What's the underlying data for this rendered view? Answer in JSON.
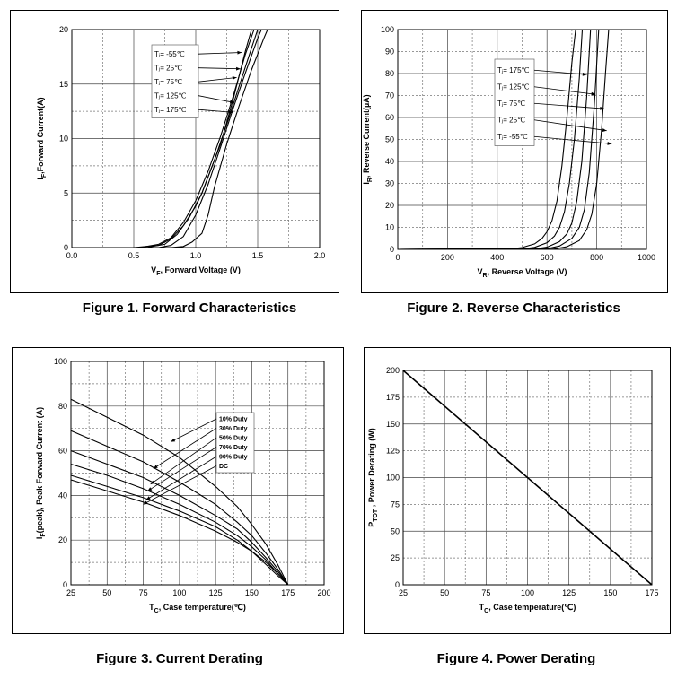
{
  "figures": [
    {
      "caption": "Figure 1. Forward Characteristics"
    },
    {
      "caption": "Figure 2. Reverse Characteristics"
    },
    {
      "caption": "Figure 3. Current Derating"
    },
    {
      "caption": "Figure 4. Power Derating"
    }
  ],
  "chart_data": [
    {
      "type": "line",
      "xlabel": {
        "main": "V",
        "sub": "F",
        "rest": ", Forward Voltage (V)"
      },
      "ylabel": {
        "main": "I",
        "sub": "F",
        "rest": ",Forward Current(A)"
      },
      "xlim": [
        0,
        2
      ],
      "ylim": [
        0,
        20
      ],
      "x_ticks": [
        "0.0",
        "0.5",
        "1.0",
        "1.5",
        "2.0"
      ],
      "y_ticks": [
        "0",
        "5",
        "10",
        "15",
        "20"
      ],
      "grid": true,
      "legend": "top-right",
      "series": [
        {
          "name": "Tⱼ= -55℃",
          "x": [
            0,
            0.5,
            0.7,
            0.8,
            0.9,
            1.0,
            1.05,
            1.1,
            1.2,
            1.3,
            1.4,
            1.45
          ],
          "y": [
            0,
            0,
            0.2,
            0.8,
            2.0,
            3.8,
            5.0,
            6.5,
            9.5,
            13.5,
            18.0,
            20
          ]
        },
        {
          "name": "Tⱼ= 25℃",
          "x": [
            0,
            0.55,
            0.7,
            0.8,
            0.9,
            1.0,
            1.1,
            1.2,
            1.3,
            1.4,
            1.47
          ],
          "y": [
            0,
            0,
            0.3,
            0.9,
            2.3,
            4.3,
            7.0,
            10.2,
            13.8,
            17.7,
            20
          ]
        },
        {
          "name": "Tⱼ= 75℃",
          "x": [
            0,
            0.6,
            0.75,
            0.85,
            0.95,
            1.05,
            1.15,
            1.25,
            1.35,
            1.45,
            1.5
          ],
          "y": [
            0,
            0,
            0.3,
            1.2,
            2.8,
            5.0,
            8.0,
            11.3,
            14.8,
            18.3,
            20
          ]
        },
        {
          "name": "Tⱼ= 125℃",
          "x": [
            0,
            0.7,
            0.8,
            0.9,
            1.0,
            1.1,
            1.2,
            1.3,
            1.4,
            1.5,
            1.53
          ],
          "y": [
            0,
            0,
            0.2,
            1.0,
            3.0,
            5.8,
            9.2,
            12.7,
            16.0,
            19.2,
            20
          ]
        },
        {
          "name": "Tⱼ= 175℃",
          "x": [
            0,
            0.8,
            0.9,
            0.97,
            1.05,
            1.1,
            1.15,
            1.25,
            1.35,
            1.45,
            1.55,
            1.58
          ],
          "y": [
            0,
            0,
            0.1,
            0.5,
            1.3,
            3.0,
            5.5,
            9.5,
            13.0,
            16.3,
            19.2,
            20
          ]
        }
      ]
    },
    {
      "type": "line",
      "xlabel": {
        "main": "V",
        "sub": "R",
        "rest": ", Reverse Voltage (V)"
      },
      "ylabel": {
        "main": "I",
        "sub": "R",
        "rest": ", Reverse Current(µA)"
      },
      "xlim": [
        0,
        1000
      ],
      "ylim": [
        0,
        100
      ],
      "x_ticks": [
        "0",
        "200",
        "400",
        "600",
        "800",
        "1000"
      ],
      "y_ticks": [
        "0",
        "10",
        "20",
        "30",
        "40",
        "50",
        "60",
        "70",
        "80",
        "90",
        "100"
      ],
      "grid": true,
      "legend": "top-center",
      "series": [
        {
          "name": "Tⱼ= 175℃",
          "x": [
            0,
            450,
            500,
            550,
            580,
            600,
            620,
            640,
            660,
            680,
            700,
            715
          ],
          "y": [
            0,
            0.2,
            0.8,
            2.5,
            5,
            8,
            13,
            22,
            38,
            60,
            85,
            100
          ]
        },
        {
          "name": "Tⱼ= 125℃",
          "x": [
            0,
            500,
            550,
            600,
            630,
            650,
            670,
            690,
            710,
            730,
            742
          ],
          "y": [
            0,
            0.2,
            0.9,
            3,
            6,
            10,
            17,
            30,
            50,
            78,
            100
          ]
        },
        {
          "name": "Tⱼ= 75℃",
          "x": [
            0,
            550,
            600,
            650,
            680,
            700,
            720,
            740,
            760,
            775
          ],
          "y": [
            0,
            0.2,
            1,
            3.5,
            7,
            12,
            22,
            40,
            70,
            100
          ]
        },
        {
          "name": "Tⱼ= 25℃",
          "x": [
            0,
            600,
            650,
            700,
            730,
            750,
            770,
            790,
            808
          ],
          "y": [
            0,
            0.3,
            1.5,
            5,
            10,
            18,
            35,
            65,
            100
          ]
        },
        {
          "name": "Tⱼ= -55℃",
          "x": [
            0,
            630,
            680,
            730,
            760,
            780,
            800,
            820,
            835,
            848
          ],
          "y": [
            0,
            0.2,
            1.2,
            4,
            9,
            16,
            30,
            55,
            80,
            100
          ]
        }
      ]
    },
    {
      "type": "line",
      "xlabel": {
        "main": "T",
        "sub": "C",
        "rest": ", Case temperature(℃)"
      },
      "ylabel": {
        "main": "I",
        "sub": "F",
        "rest": "(peak), Peak Forward Current (A)"
      },
      "xlim": [
        25,
        200
      ],
      "ylim": [
        0,
        100
      ],
      "x_ticks": [
        "25",
        "50",
        "75",
        "100",
        "125",
        "150",
        "175",
        "200"
      ],
      "y_ticks": [
        "0",
        "20",
        "40",
        "60",
        "80",
        "100"
      ],
      "grid": true,
      "legend": "center-right",
      "series": [
        {
          "name": "10% Duty",
          "x": [
            25,
            50,
            75,
            100,
            125,
            140,
            150,
            160,
            168,
            175
          ],
          "y": [
            83,
            75,
            67,
            57,
            44,
            35,
            27,
            18,
            9,
            0
          ]
        },
        {
          "name": "30% Duty",
          "x": [
            25,
            50,
            75,
            100,
            125,
            140,
            150,
            160,
            168,
            175
          ],
          "y": [
            69,
            62,
            55,
            46,
            36,
            28,
            22,
            14,
            7,
            0
          ]
        },
        {
          "name": "50% Duty",
          "x": [
            25,
            50,
            75,
            100,
            125,
            140,
            150,
            160,
            168,
            175
          ],
          "y": [
            60,
            54,
            48,
            40,
            31,
            25,
            19,
            12,
            6,
            0
          ]
        },
        {
          "name": "70% Duty",
          "x": [
            25,
            50,
            75,
            100,
            125,
            140,
            150,
            160,
            168,
            175
          ],
          "y": [
            54,
            49,
            43,
            36,
            28,
            22,
            17,
            11,
            5,
            0
          ]
        },
        {
          "name": "90% Duty",
          "x": [
            25,
            50,
            75,
            100,
            125,
            140,
            150,
            160,
            168,
            175
          ],
          "y": [
            49,
            44,
            39,
            33,
            26,
            20,
            15,
            10,
            5,
            0
          ]
        },
        {
          "name": "DC",
          "x": [
            25,
            50,
            75,
            100,
            125,
            140,
            150,
            160,
            168,
            175
          ],
          "y": [
            47,
            42,
            37,
            31,
            24,
            19,
            15,
            9,
            4,
            0
          ]
        }
      ]
    },
    {
      "type": "line",
      "xlabel": {
        "main": "T",
        "sub": "C",
        "rest": ", Case temperature(℃)"
      },
      "ylabel": {
        "main": "P",
        "sub": "TOT",
        "rest": " , Power Derating (W)"
      },
      "xlim": [
        25,
        175
      ],
      "ylim": [
        0,
        200
      ],
      "x_ticks": [
        "25",
        "50",
        "75",
        "100",
        "125",
        "150",
        "175"
      ],
      "y_ticks": [
        "0",
        "25",
        "50",
        "75",
        "100",
        "125",
        "150",
        "175",
        "200"
      ],
      "grid": true,
      "series": [
        {
          "x": [
            25,
            175
          ],
          "y": [
            200,
            0
          ]
        }
      ]
    }
  ]
}
